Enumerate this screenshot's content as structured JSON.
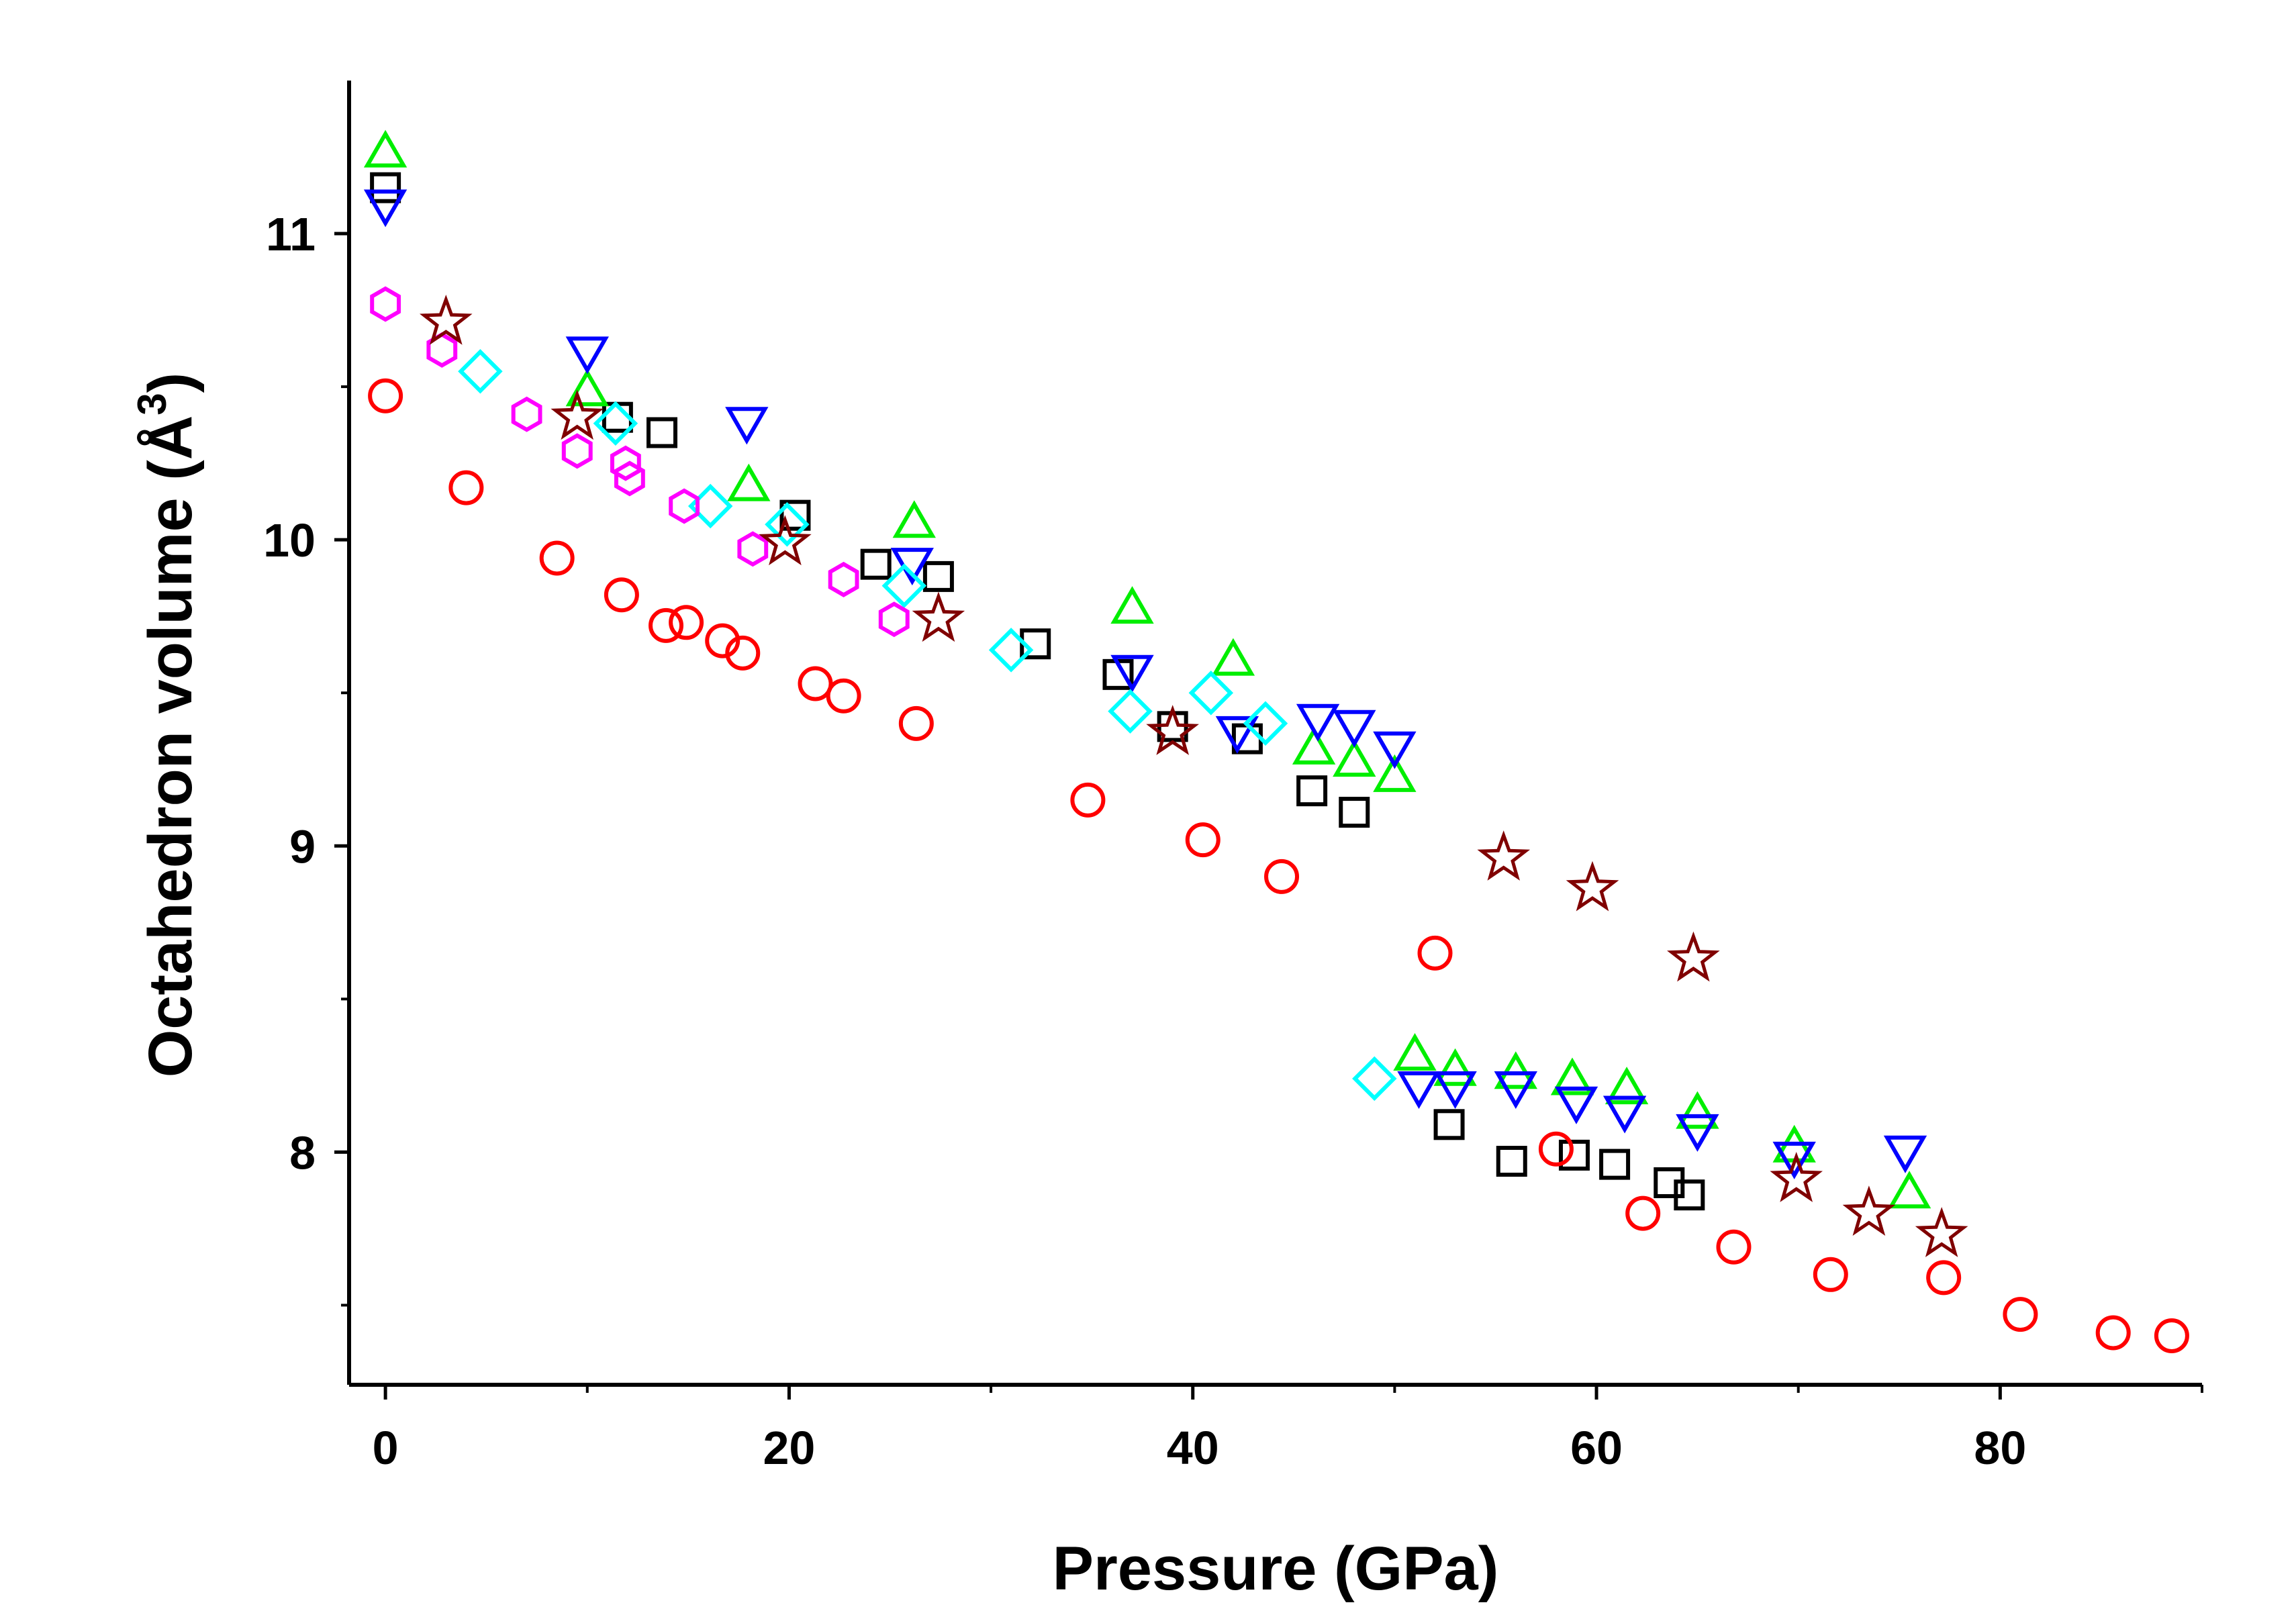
{
  "chart_data": {
    "type": "scatter",
    "title": "",
    "xlabel": "Pressure (GPa)",
    "ylabel": "Octahedron volume (Å³)",
    "ylabel_main": "Octahedron volume (",
    "ylabel_unit": "Å",
    "ylabel_exp": "3",
    "ylabel_close": ")",
    "xlim": [
      -1.8,
      90
    ],
    "ylim": [
      7.24,
      11.5
    ],
    "x_ticks": [
      0,
      20,
      40,
      60,
      80
    ],
    "x_tick_labels": [
      "0",
      "20",
      "40",
      "60",
      "80"
    ],
    "x_minor_ticks": [
      10,
      30,
      50,
      70,
      90
    ],
    "y_ticks": [
      8,
      9,
      10,
      11
    ],
    "y_tick_labels": [
      "8",
      "9",
      "10",
      "11"
    ],
    "y_minor_ticks": [
      7.5,
      8.5,
      9.5,
      10.5
    ],
    "grid": false,
    "legend": "none",
    "series": [
      {
        "name": "black squares",
        "marker": "square",
        "color": "#000000",
        "points": [
          [
            0,
            11.15
          ],
          [
            11.5,
            10.4
          ],
          [
            13.7,
            10.35
          ],
          [
            20.3,
            10.08
          ],
          [
            24.3,
            9.92
          ],
          [
            27.4,
            9.88
          ],
          [
            32.2,
            9.66
          ],
          [
            36.3,
            9.56
          ],
          [
            39.0,
            9.39
          ],
          [
            42.7,
            9.35
          ],
          [
            45.9,
            9.18
          ],
          [
            48.0,
            9.11
          ],
          [
            52.7,
            8.09
          ],
          [
            55.8,
            7.97
          ],
          [
            58.9,
            7.99
          ],
          [
            60.9,
            7.96
          ],
          [
            63.6,
            7.9
          ],
          [
            64.6,
            7.86
          ]
        ]
      },
      {
        "name": "red circles",
        "marker": "circle",
        "color": "#ff0000",
        "points": [
          [
            0,
            10.47
          ],
          [
            4.0,
            10.17
          ],
          [
            8.5,
            9.94
          ],
          [
            11.7,
            9.82
          ],
          [
            13.9,
            9.72
          ],
          [
            14.9,
            9.73
          ],
          [
            16.7,
            9.67
          ],
          [
            17.7,
            9.63
          ],
          [
            21.3,
            9.53
          ],
          [
            22.7,
            9.49
          ],
          [
            26.3,
            9.4
          ],
          [
            34.8,
            9.15
          ],
          [
            40.5,
            9.02
          ],
          [
            44.4,
            8.9
          ],
          [
            52.0,
            8.65
          ],
          [
            58.0,
            8.01
          ],
          [
            62.3,
            7.8
          ],
          [
            66.8,
            7.69
          ],
          [
            71.6,
            7.6
          ],
          [
            77.2,
            7.59
          ],
          [
            81.0,
            7.47
          ],
          [
            85.6,
            7.41
          ],
          [
            88.5,
            7.4
          ]
        ]
      },
      {
        "name": "green triangles",
        "marker": "triangle-up",
        "color": "#00ee00",
        "points": [
          [
            0,
            11.26
          ],
          [
            10.0,
            10.48
          ],
          [
            18.0,
            10.17
          ],
          [
            26.2,
            10.05
          ],
          [
            37.0,
            9.77
          ],
          [
            42.0,
            9.6
          ],
          [
            46.0,
            9.31
          ],
          [
            48.0,
            9.27
          ],
          [
            50.0,
            9.22
          ],
          [
            51.0,
            8.31
          ],
          [
            53.0,
            8.26
          ],
          [
            56.0,
            8.25
          ],
          [
            58.8,
            8.23
          ],
          [
            61.5,
            8.2
          ],
          [
            65.0,
            8.12
          ],
          [
            69.8,
            8.01
          ],
          [
            75.5,
            7.86
          ]
        ]
      },
      {
        "name": "blue inverted triangles",
        "marker": "triangle-down",
        "color": "#0000ff",
        "points": [
          [
            0,
            11.1
          ],
          [
            10.0,
            10.62
          ],
          [
            17.9,
            10.39
          ],
          [
            26.1,
            9.93
          ],
          [
            37.0,
            9.58
          ],
          [
            42.2,
            9.38
          ],
          [
            46.2,
            9.42
          ],
          [
            48.0,
            9.4
          ],
          [
            50.0,
            9.33
          ],
          [
            51.2,
            8.22
          ],
          [
            53.0,
            8.22
          ],
          [
            56.0,
            8.22
          ],
          [
            59.0,
            8.17
          ],
          [
            61.4,
            8.14
          ],
          [
            65.0,
            8.08
          ],
          [
            69.8,
            7.99
          ],
          [
            75.3,
            8.01
          ]
        ]
      },
      {
        "name": "cyan diamonds",
        "marker": "diamond",
        "color": "#00ffff",
        "points": [
          [
            4.7,
            10.55
          ],
          [
            11.4,
            10.38
          ],
          [
            16.1,
            10.11
          ],
          [
            19.9,
            10.05
          ],
          [
            25.7,
            9.85
          ],
          [
            31.0,
            9.64
          ],
          [
            36.9,
            9.44
          ],
          [
            40.9,
            9.5
          ],
          [
            43.6,
            9.4
          ],
          [
            49.0,
            8.24
          ]
        ]
      },
      {
        "name": "magenta hexagons",
        "marker": "hexagon",
        "color": "#ff00ff",
        "points": [
          [
            0,
            10.77
          ],
          [
            2.8,
            10.62
          ],
          [
            7.0,
            10.41
          ],
          [
            9.5,
            10.29
          ],
          [
            11.9,
            10.25
          ],
          [
            12.1,
            10.2
          ],
          [
            14.8,
            10.11
          ],
          [
            18.2,
            9.97
          ],
          [
            22.7,
            9.87
          ],
          [
            25.2,
            9.74
          ]
        ]
      },
      {
        "name": "dark red stars",
        "marker": "star",
        "color": "#800000",
        "points": [
          [
            3.0,
            10.71
          ],
          [
            9.5,
            10.4
          ],
          [
            19.8,
            9.99
          ],
          [
            27.4,
            9.74
          ],
          [
            39.0,
            9.37
          ],
          [
            55.4,
            8.96
          ],
          [
            59.8,
            8.86
          ],
          [
            64.8,
            8.63
          ],
          [
            69.9,
            7.91
          ],
          [
            73.5,
            7.8
          ],
          [
            77.1,
            7.73
          ]
        ]
      }
    ]
  }
}
